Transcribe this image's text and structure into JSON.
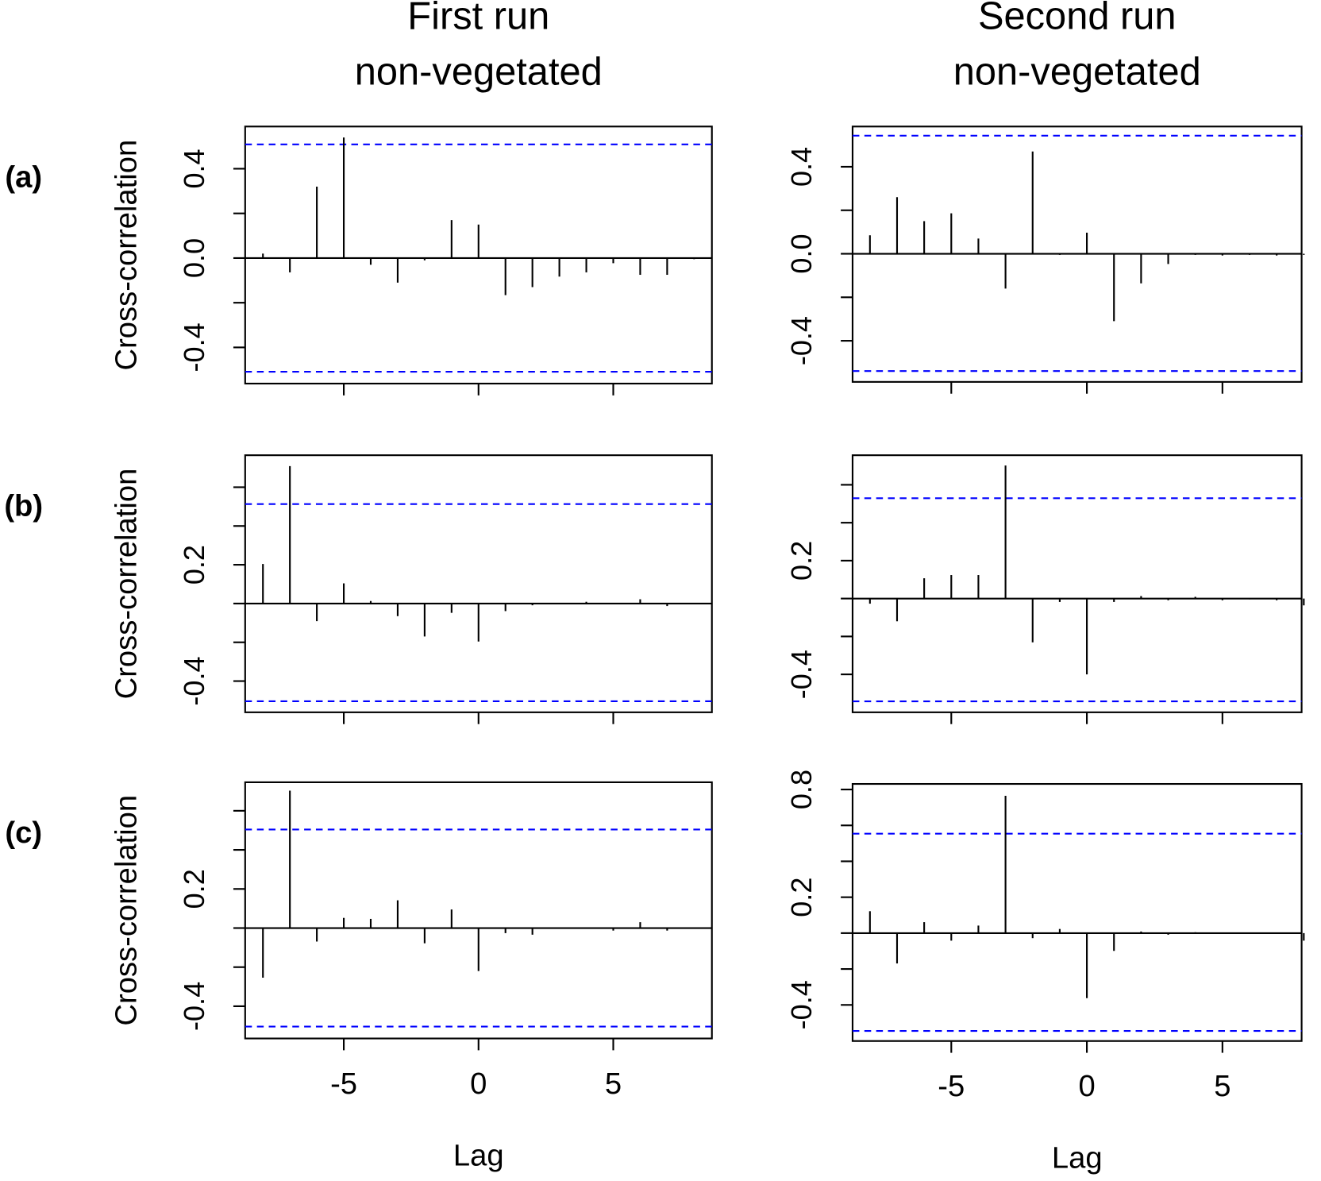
{
  "chart_data": [
    {
      "type": "stem",
      "title": "First run",
      "subtitle": "non-vegetated",
      "panel_label": "(a)",
      "ylabel": "Cross-correlation",
      "x": [
        -8,
        -7,
        -6,
        -5,
        -4,
        -3,
        -2,
        -1,
        0,
        1,
        2,
        3,
        4,
        5,
        6,
        7,
        8
      ],
      "values": [
        0.02,
        -0.064,
        0.32,
        0.54,
        -0.03,
        -0.11,
        -0.01,
        0.17,
        0.15,
        -0.166,
        -0.13,
        -0.083,
        -0.064,
        -0.023,
        -0.075,
        -0.075,
        -0.005
      ],
      "color": "#000000",
      "ci": [
        0.509,
        -0.509
      ],
      "ci_color": "#0000ff",
      "xlim": [
        -8.66,
        8.66
      ],
      "ylim": [
        -0.562,
        0.589
      ],
      "xticks": [
        -5,
        0,
        5
      ],
      "xtick_labels": false,
      "yticks": [
        0.4,
        {
          "value": 0,
          "label": "0.0"
        },
        -0.4
      ],
      "yticks_unlabeled": [
        0.2,
        -0.2
      ]
    },
    {
      "type": "stem",
      "title": "Second run",
      "subtitle": "non-vegetated",
      "x": [
        -8,
        -7,
        -6,
        -5,
        -4,
        -3,
        -2,
        -1,
        0,
        1,
        2,
        3,
        4,
        5,
        6,
        7,
        8
      ],
      "values": [
        0.085,
        0.26,
        0.15,
        0.186,
        0.07,
        -0.16,
        0.47,
        -0.005,
        0.097,
        -0.31,
        -0.136,
        -0.047,
        -0.005,
        -0.008,
        -0.005,
        -0.008,
        -0.005
      ],
      "color": "#000000",
      "ci": [
        0.543,
        -0.539
      ],
      "ci_color": "#0000ff",
      "xlim": [
        -8.64,
        7.92
      ],
      "ylim": [
        -0.589,
        0.585
      ],
      "xticks": [
        -5,
        0,
        5
      ],
      "xtick_labels": false,
      "yticks": [
        0.4,
        {
          "value": 0,
          "label": "0.0"
        },
        -0.4
      ],
      "yticks_unlabeled": [
        0.2,
        -0.2
      ]
    },
    {
      "type": "stem",
      "panel_label": "(b)",
      "ylabel": "Cross-correlation",
      "x": [
        -8,
        -7,
        -6,
        -5,
        -4,
        -3,
        -2,
        -1,
        0,
        1,
        2,
        3,
        4,
        5,
        6,
        7,
        8
      ],
      "values": [
        0.204,
        0.709,
        -0.091,
        0.104,
        0.013,
        -0.065,
        -0.17,
        -0.048,
        -0.196,
        -0.039,
        -0.009,
        -0.004,
        0.009,
        -0.004,
        0.022,
        -0.013,
        0
      ],
      "color": "#000000",
      "ci": [
        0.513,
        -0.504
      ],
      "ci_color": "#0000ff",
      "xlim": [
        -8.66,
        8.66
      ],
      "ylim": [
        -0.561,
        0.765
      ],
      "xticks": [
        -5,
        0,
        5
      ],
      "xtick_labels": false,
      "yticks": [
        0.2,
        -0.4
      ],
      "yticks_unlabeled": [
        0.6,
        0.4,
        0,
        -0.2
      ]
    },
    {
      "type": "stem",
      "x": [
        -8,
        -7,
        -6,
        -5,
        -4,
        -3,
        -2,
        -1,
        0,
        1,
        2,
        3,
        4,
        5,
        6,
        7,
        8
      ],
      "values": [
        -0.027,
        -0.12,
        0.107,
        0.124,
        0.124,
        0.702,
        -0.231,
        -0.018,
        -0.4,
        -0.018,
        0.013,
        -0.009,
        0.009,
        -0.009,
        -0.004,
        -0.009,
        -0.036
      ],
      "color": "#000000",
      "ci": [
        0.529,
        -0.542
      ],
      "ci_color": "#0000ff",
      "xlim": [
        -8.64,
        7.92
      ],
      "ylim": [
        -0.6,
        0.756
      ],
      "xticks": [
        -5,
        0,
        5
      ],
      "xtick_labels": false,
      "yticks": [
        0.2,
        -0.4
      ],
      "yticks_unlabeled": [
        0.6,
        0.4,
        0,
        -0.2
      ]
    },
    {
      "type": "stem",
      "panel_label": "(c)",
      "ylabel": "Cross-correlation",
      "xlabel": "Lag",
      "x": [
        -8,
        -7,
        -6,
        -5,
        -4,
        -3,
        -2,
        -1,
        0,
        1,
        2,
        3,
        4,
        5,
        6,
        7,
        8
      ],
      "values": [
        -0.254,
        0.703,
        -0.069,
        0.052,
        0.047,
        0.142,
        -0.078,
        0.095,
        -0.22,
        -0.026,
        -0.034,
        0,
        -0.004,
        -0.013,
        0.03,
        -0.013,
        0
      ],
      "color": "#000000",
      "ci": [
        0.504,
        -0.504
      ],
      "ci_color": "#0000ff",
      "xlim": [
        -8.66,
        8.66
      ],
      "ylim": [
        -0.565,
        0.746
      ],
      "xticks": [
        -5,
        0,
        5
      ],
      "xtick_labels": true,
      "yticks": [
        0.2,
        -0.4
      ],
      "yticks_unlabeled": [
        0.6,
        0.4,
        0,
        -0.2
      ]
    },
    {
      "type": "stem",
      "xlabel": "Lag",
      "x": [
        -8,
        -7,
        -6,
        -5,
        -4,
        -3,
        -2,
        -1,
        0,
        1,
        2,
        3,
        4,
        5,
        6,
        7,
        8
      ],
      "values": [
        0.122,
        -0.169,
        0.061,
        -0.042,
        0.042,
        0.765,
        -0.028,
        0.023,
        -0.362,
        -0.099,
        0.009,
        -0.009,
        0.005,
        -0.005,
        0,
        -0.005,
        -0.042
      ],
      "color": "#000000",
      "ci": [
        0.554,
        -0.545
      ],
      "ci_color": "#0000ff",
      "xlim": [
        -8.64,
        7.92
      ],
      "ylim": [
        -0.601,
        0.831
      ],
      "xticks": [
        -5,
        0,
        5
      ],
      "xtick_labels": true,
      "yticks": [
        0.8,
        0.2,
        -0.4
      ],
      "yticks_unlabeled": [
        0.6,
        0.4,
        0,
        -0.2
      ]
    }
  ]
}
